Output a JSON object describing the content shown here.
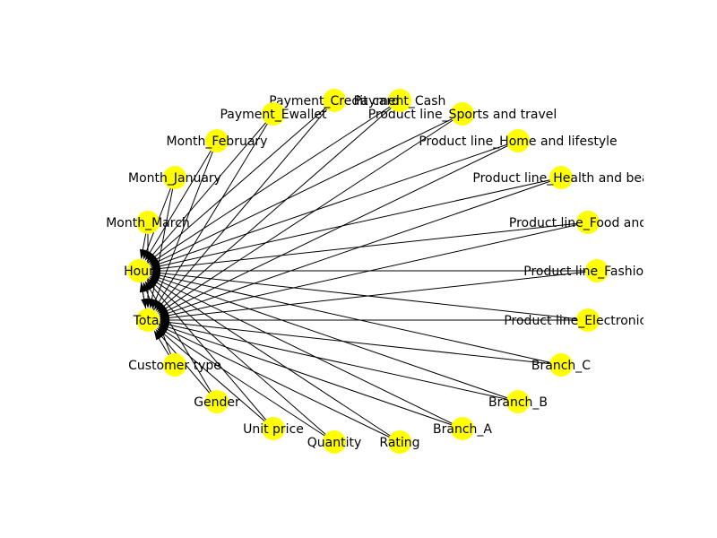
{
  "graph": {
    "node_color": "#ffff00",
    "edge_color": "#000000",
    "nodes": [
      {
        "id": "hour",
        "label": "Hour"
      },
      {
        "id": "total",
        "label": "Total"
      },
      {
        "id": "customer_type",
        "label": "Customer type"
      },
      {
        "id": "gender",
        "label": "Gender"
      },
      {
        "id": "unit_price",
        "label": "Unit price"
      },
      {
        "id": "quantity",
        "label": "Quantity"
      },
      {
        "id": "rating",
        "label": "Rating"
      },
      {
        "id": "branch_a",
        "label": "Branch_A"
      },
      {
        "id": "branch_b",
        "label": "Branch_B"
      },
      {
        "id": "branch_c",
        "label": "Branch_C"
      },
      {
        "id": "pl_electronic",
        "label": "Product line_Electronic acc"
      },
      {
        "id": "pl_fashion",
        "label": "Product line_Fashion ac"
      },
      {
        "id": "pl_food",
        "label": "Product line_Food and be"
      },
      {
        "id": "pl_health",
        "label": "Product line_Health and bea"
      },
      {
        "id": "pl_home",
        "label": "Product line_Home and lifestyle"
      },
      {
        "id": "pl_sports",
        "label": "Product line_Sports and travel"
      },
      {
        "id": "pay_cash",
        "label": "Payment_Cash"
      },
      {
        "id": "pay_credit",
        "label": "Payment_Credit card"
      },
      {
        "id": "pay_ewallet",
        "label": "Payment_Ewallet"
      },
      {
        "id": "month_feb",
        "label": "Month_February"
      },
      {
        "id": "month_jan",
        "label": "Month_January"
      },
      {
        "id": "month_mar",
        "label": "Month_March"
      }
    ],
    "targets": [
      "hour",
      "total"
    ]
  }
}
